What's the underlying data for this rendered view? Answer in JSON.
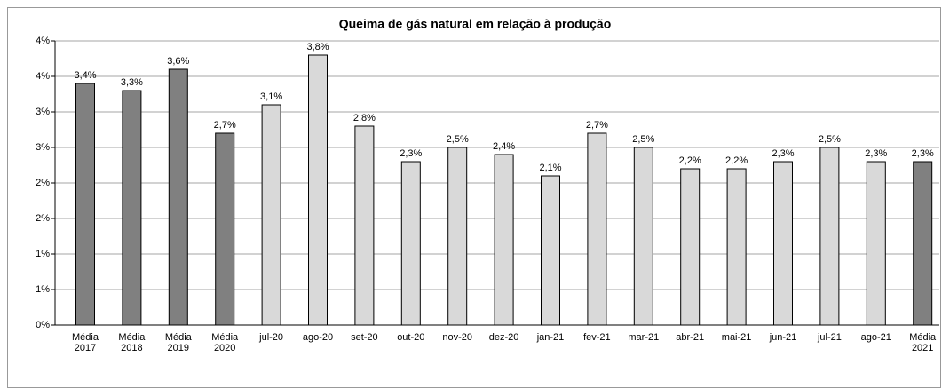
{
  "chart_data": {
    "type": "bar",
    "title": "Queima de gás natural  em relação à produção",
    "categories": [
      "Média 2017",
      "Média 2018",
      "Média 2019",
      "Média 2020",
      "jul-20",
      "ago-20",
      "set-20",
      "out-20",
      "nov-20",
      "dez-20",
      "jan-21",
      "fev-21",
      "mar-21",
      "abr-21",
      "mai-21",
      "jun-21",
      "jul-21",
      "ago-21",
      "Média 2021"
    ],
    "values": [
      3.4,
      3.3,
      3.6,
      2.7,
      3.1,
      3.8,
      2.8,
      2.3,
      2.5,
      2.4,
      2.1,
      2.7,
      2.5,
      2.2,
      2.2,
      2.3,
      2.5,
      2.3,
      2.3
    ],
    "value_labels": [
      "3,4%",
      "3,3%",
      "3,6%",
      "2,7%",
      "3,1%",
      "3,8%",
      "2,8%",
      "2,3%",
      "2,5%",
      "2,4%",
      "2,1%",
      "2,7%",
      "2,5%",
      "2,2%",
      "2,2%",
      "2,3%",
      "2,5%",
      "2,3%",
      "2,3%"
    ],
    "colors": [
      "#808080",
      "#808080",
      "#808080",
      "#808080",
      "#d9d9d9",
      "#d9d9d9",
      "#d9d9d9",
      "#d9d9d9",
      "#d9d9d9",
      "#d9d9d9",
      "#d9d9d9",
      "#d9d9d9",
      "#d9d9d9",
      "#d9d9d9",
      "#d9d9d9",
      "#d9d9d9",
      "#d9d9d9",
      "#d9d9d9",
      "#808080"
    ],
    "ylim": [
      0,
      4
    ],
    "yticks": [
      {
        "value": 0,
        "label": "0%"
      },
      {
        "value": 0.5,
        "label": "1%"
      },
      {
        "value": 1,
        "label": "1%"
      },
      {
        "value": 1.5,
        "label": "2%"
      },
      {
        "value": 2,
        "label": "2%"
      },
      {
        "value": 2.5,
        "label": "3%"
      },
      {
        "value": 3,
        "label": "3%"
      },
      {
        "value": 3.5,
        "label": "4%"
      },
      {
        "value": 4,
        "label": "4%"
      }
    ],
    "grid": true
  }
}
